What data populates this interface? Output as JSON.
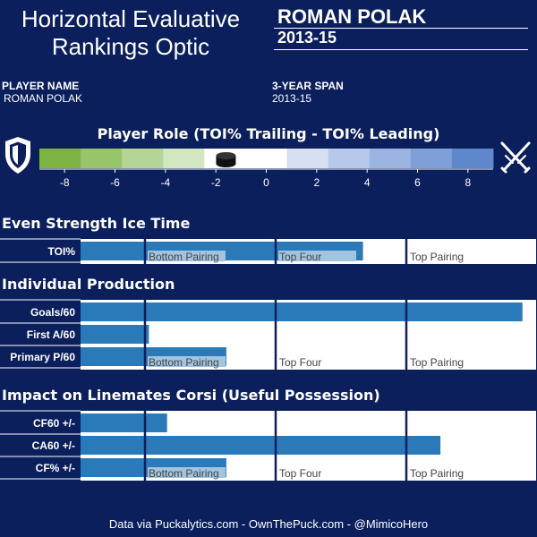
{
  "header": {
    "title_line1": "Horizontal Evaluative",
    "title_line2": "Rankings Optic",
    "player_name_big": "ROMAN POLAK",
    "span_big": "2013-15"
  },
  "info": {
    "player_name_label": "PLAYER NAME",
    "player_name_value": "ROMAN POLAK",
    "span_label": "3-YEAR SPAN",
    "span_value": "2013-15"
  },
  "role_scale": {
    "title": "Player Role (TOI% Trailing - TOI% Leading)",
    "ticks": [
      "-8",
      "-6",
      "-4",
      "-2",
      "0",
      "2",
      "4",
      "6",
      "8"
    ],
    "min": -9,
    "max": 9,
    "marker_value": -1.6,
    "segment_colors": [
      "#7cb342",
      "#98c46a",
      "#b5d497",
      "#d2e6c2",
      "#ffffff",
      "#ffffff",
      "#d6e0f2",
      "#b7c9ea",
      "#9bb4e1",
      "#7e9fd8",
      "#5f87cc"
    ],
    "left_icon": "shield-icon",
    "right_icon": "crossed-swords-icon"
  },
  "chart_data": [
    {
      "type": "bar",
      "title": "Even Strength Ice Time",
      "categories": [
        "TOI%"
      ],
      "values": [
        0.62
      ],
      "unit": "fraction of tier scale",
      "tier_labels": [
        "Bottom Pairing",
        "Top Four",
        "Top Pairing"
      ]
    },
    {
      "type": "bar",
      "title": "Individual Production",
      "categories": [
        "Goals/60",
        "First A/60",
        "Primary P/60"
      ],
      "values": [
        0.97,
        0.15,
        0.32
      ],
      "unit": "fraction of tier scale",
      "tier_labels": [
        "Bottom Pairing",
        "Top Four",
        "Top Pairing"
      ]
    },
    {
      "type": "bar",
      "title": "Impact on Linemates Corsi (Useful Possession)",
      "categories": [
        "CF60 +/-",
        "CA60 +/-",
        "CF% +/-"
      ],
      "values": [
        0.19,
        0.79,
        0.32
      ],
      "unit": "fraction of tier scale",
      "tier_labels": [
        "Bottom Pairing",
        "Top Four",
        "Top Pairing"
      ]
    }
  ],
  "colors": {
    "background": "#0b1f5c",
    "bar": "#2a7ab9",
    "divider": "#0b1f5c",
    "panel": "#ffffff",
    "tier_label_bg": "#a3c4e0"
  },
  "footer": "Data via Puckalytics.com - OwnThePuck.com - @MimicoHero"
}
